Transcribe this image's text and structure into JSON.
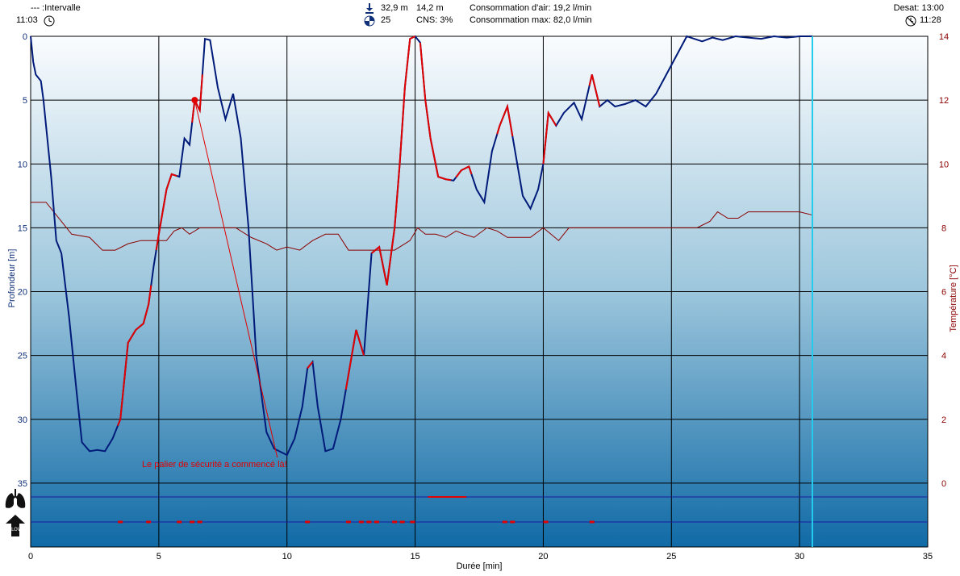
{
  "header": {
    "interval_label": "--- :Intervalle",
    "start_time": "11:03",
    "max_depth": "32,9 m",
    "avg_depth": "14,2 m",
    "temperature_min": "25",
    "cns": "CNS:  3%",
    "air_consumption": "Consommation d'air: 19,2 l/min",
    "air_consumption_max": "Consommation max: 82,0 l/min",
    "desat": "Desat: 13:00",
    "end_time": "11:28"
  },
  "icons": {
    "start_clock": "clock-icon",
    "max_depth": "down-arrow-icon",
    "water_temp": "thermometer-gauge-icon",
    "end_clock": "clock-crossed-icon",
    "lungs": "lungs-icon",
    "ascent_warning": "ascent-warning-icon"
  },
  "colors": {
    "depth_line": "#001a7a",
    "depth_fast_ascent": "#e00000",
    "temperature_line": "#8b0000",
    "cursor_line": "#22ccee",
    "bg_top": "#fafcfe",
    "bg_bottom": "#106aa6"
  },
  "annotation": {
    "text": "Le palier de sécurité a commencé là!"
  },
  "chart_data": {
    "type": "line",
    "xlabel": "Durée [min]",
    "ylabel": "Profondeur [m]",
    "y2label": "Température [°C]",
    "xlim": [
      0,
      35
    ],
    "ylim": [
      0,
      40
    ],
    "y_inverted": true,
    "y2lim": [
      -1,
      14
    ],
    "x_ticks": [
      "0",
      "5",
      "10",
      "15",
      "20",
      "25",
      "30",
      "35"
    ],
    "y_ticks": [
      "0",
      "5",
      "10",
      "15",
      "20",
      "25",
      "30",
      "35"
    ],
    "y2_ticks": [
      "14",
      "12",
      "10",
      "8",
      "6",
      "4",
      "2",
      "0"
    ],
    "grid": true,
    "cursor_x": 30.5,
    "annotation_point": {
      "x": 6.4,
      "y": 5.0
    },
    "annotation_text_at": {
      "x": 10.0,
      "y": 33.5
    },
    "series": [
      {
        "key": "depth",
        "x": [
          0,
          0.1,
          0.2,
          0.4,
          0.5,
          0.6,
          0.8,
          1.0,
          1.2,
          1.5,
          1.8,
          2.0,
          2.3,
          2.6,
          2.9,
          3.2,
          3.5,
          3.6,
          3.8,
          4.1,
          4.4,
          4.6,
          4.8,
          5.0,
          5.3,
          5.5,
          5.8,
          6.0,
          6.2,
          6.4,
          6.6,
          6.8,
          7.0,
          7.3,
          7.6,
          7.9,
          8.2,
          8.5,
          8.8,
          9.2,
          9.5,
          9.8,
          10.0,
          10.3,
          10.6,
          10.8,
          11.0,
          11.2,
          11.5,
          11.8,
          12.1,
          12.4,
          12.7,
          13.0,
          13.3,
          13.6,
          13.9,
          14.2,
          14.4,
          14.6,
          14.8,
          15.0,
          15.2,
          15.4,
          15.6,
          15.9,
          16.2,
          16.5,
          16.8,
          17.1,
          17.4,
          17.7,
          18.0,
          18.3,
          18.6,
          18.9,
          19.2,
          19.5,
          19.8,
          20.0,
          20.2,
          20.5,
          20.8,
          21.2,
          21.5,
          21.9,
          22.2,
          22.5,
          22.8,
          23.2,
          23.6,
          24.0,
          24.4,
          24.8,
          25.2,
          25.6,
          25.9,
          26.2,
          26.6,
          27.0,
          27.5,
          28.0,
          28.5,
          29.0,
          29.5,
          30.0,
          30.5
        ],
        "y": [
          0,
          2,
          3.0,
          3.5,
          5,
          7,
          11,
          16,
          17,
          22,
          28,
          31.8,
          32.5,
          32.4,
          32.5,
          31.5,
          30,
          28,
          24,
          23,
          22.5,
          21,
          18,
          15.5,
          12,
          10.8,
          11,
          8,
          8.5,
          5.0,
          5.8,
          0.2,
          0.3,
          4,
          6.5,
          4.5,
          8,
          15,
          25,
          31,
          32.3,
          32.6,
          32.8,
          31.5,
          29,
          26,
          25.5,
          29,
          32.5,
          32.3,
          30,
          26.5,
          23,
          25,
          17,
          16.5,
          19.5,
          15,
          10,
          4,
          0.2,
          0,
          0.5,
          5,
          8,
          11,
          11.2,
          11.3,
          10.5,
          10.2,
          12,
          13,
          9,
          7,
          5.5,
          9,
          12.5,
          13.5,
          12,
          10,
          6,
          7,
          6,
          5.2,
          6.5,
          3,
          5.5,
          5.0,
          5.5,
          5.3,
          5.0,
          5.5,
          4.5,
          3,
          1.5,
          0,
          0.2,
          0.4,
          0.1,
          0.3,
          0.0,
          0.1,
          0.2,
          0.0,
          0.1,
          0.0,
          0.0
        ]
      },
      {
        "key": "temperature",
        "x": [
          0,
          0.6,
          1.2,
          1.6,
          2.3,
          2.8,
          3.3,
          3.8,
          4.3,
          4.8,
          5.3,
          5.6,
          5.9,
          6.2,
          6.6,
          7.0,
          8.0,
          8.6,
          9.2,
          9.6,
          10.0,
          10.5,
          11.0,
          11.5,
          12.0,
          12.4,
          12.8,
          13.3,
          13.8,
          14.2,
          14.8,
          15.1,
          15.4,
          15.8,
          16.2,
          16.6,
          16.9,
          17.3,
          17.8,
          18.2,
          18.6,
          19.0,
          19.5,
          20.0,
          20.3,
          20.6,
          21.0,
          21.5,
          23.0,
          25.0,
          26.0,
          26.5,
          26.8,
          27.2,
          27.6,
          28.0,
          29.0,
          30.0,
          30.5
        ],
        "y": [
          8.8,
          8.8,
          8.2,
          7.8,
          7.7,
          7.3,
          7.3,
          7.5,
          7.6,
          7.6,
          7.6,
          7.9,
          8.0,
          7.8,
          8.0,
          8.0,
          8.0,
          7.7,
          7.5,
          7.3,
          7.4,
          7.3,
          7.6,
          7.8,
          7.8,
          7.3,
          7.3,
          7.3,
          7.3,
          7.3,
          7.6,
          8.0,
          7.8,
          7.8,
          7.7,
          7.9,
          7.8,
          7.7,
          8.0,
          7.9,
          7.7,
          7.7,
          7.7,
          8.0,
          7.8,
          7.6,
          8.0,
          8.0,
          8.0,
          8.0,
          8.0,
          8.2,
          8.5,
          8.3,
          8.3,
          8.5,
          8.5,
          8.5,
          8.4
        ]
      }
    ],
    "fast_ascent_segments": [
      [
        3.4,
        4.7
      ],
      [
        4.9,
        5.7
      ],
      [
        6.3,
        6.7
      ],
      [
        10.8,
        11.0
      ],
      [
        12.3,
        13.0
      ],
      [
        13.3,
        15.0
      ],
      [
        15.2,
        16.4
      ],
      [
        16.6,
        17.2
      ],
      [
        18.2,
        18.8
      ],
      [
        20.0,
        20.5
      ],
      [
        21.8,
        22.2
      ]
    ],
    "lung_bar_segments": [
      [
        15.5,
        17.0
      ]
    ],
    "warning_marks": [
      3.5,
      4.6,
      5.8,
      6.3,
      6.6,
      10.8,
      12.4,
      12.9,
      13.2,
      13.5,
      14.2,
      14.5,
      14.9,
      18.5,
      18.8,
      20.1,
      21.9
    ]
  }
}
